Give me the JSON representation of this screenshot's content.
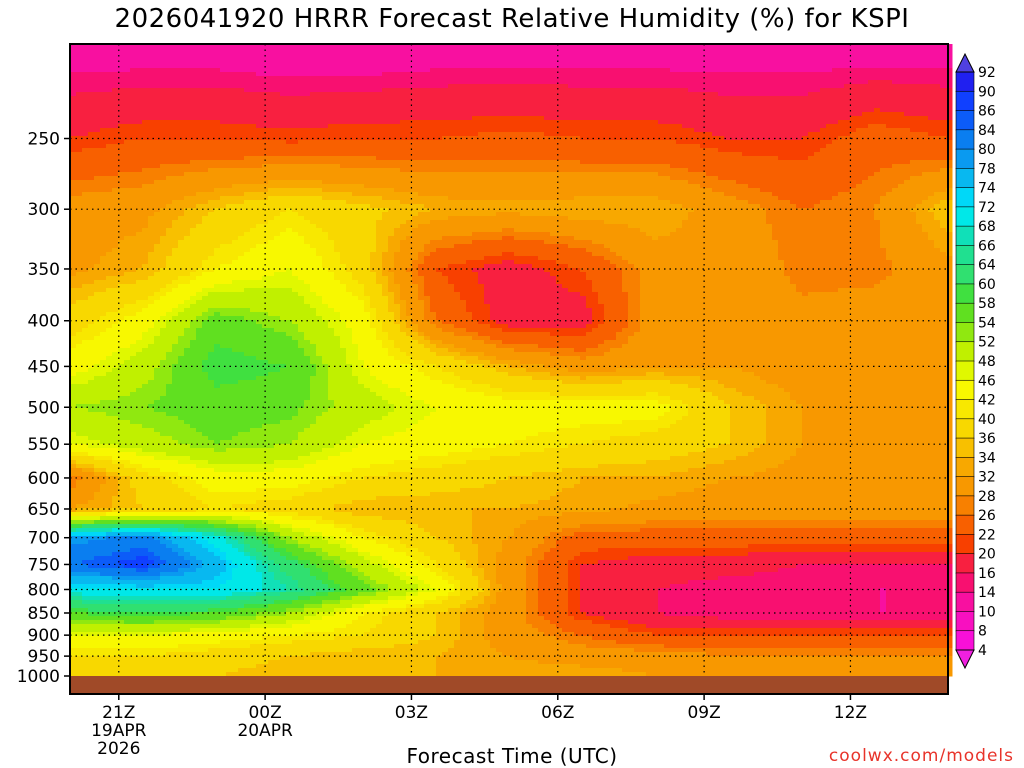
{
  "chart_data": {
    "type": "heatmap",
    "title": "2026041920 HRRR Forecast Relative Humidity (%) for KSPI",
    "xlabel": "Forecast Time (UTC)",
    "ylabel": "",
    "credit": "coolwx.com/models",
    "x_ticks": [
      {
        "hour": 1,
        "lines": [
          "21Z",
          "19APR",
          "2026"
        ]
      },
      {
        "hour": 4,
        "lines": [
          "00Z",
          "20APR"
        ]
      },
      {
        "hour": 7,
        "lines": [
          "03Z"
        ]
      },
      {
        "hour": 10,
        "lines": [
          "06Z"
        ]
      },
      {
        "hour": 13,
        "lines": [
          "09Z"
        ]
      },
      {
        "hour": 16,
        "lines": [
          "12Z"
        ]
      }
    ],
    "x_range_hours": [
      0,
      18
    ],
    "y_ticks": [
      250,
      300,
      350,
      400,
      450,
      500,
      550,
      600,
      650,
      700,
      750,
      800,
      850,
      900,
      950,
      1000
    ],
    "y_scale": "log",
    "y_range_hpa": [
      200,
      1000
    ],
    "grid": true,
    "colorbar": {
      "labels": [
        "92",
        "90",
        "86",
        "84",
        "80",
        "78",
        "74",
        "72",
        "68",
        "66",
        "64",
        "60",
        "58",
        "54",
        "52",
        "48",
        "46",
        "42",
        "40",
        "36",
        "34",
        "32",
        "28",
        "26",
        "22",
        "20",
        "16",
        "14",
        "10",
        "8",
        "4"
      ],
      "colors": [
        "#2020f0",
        "#1040ff",
        "#0c5cf8",
        "#0a7ef0",
        "#0a9af0",
        "#08b8f0",
        "#00d8f8",
        "#00e8e8",
        "#10e0b8",
        "#20e090",
        "#30e070",
        "#40e040",
        "#60e020",
        "#90e810",
        "#c0f000",
        "#e0f800",
        "#f8f800",
        "#f8e800",
        "#f8d800",
        "#f8c000",
        "#f8a800",
        "#f89800",
        "#f88000",
        "#f86000",
        "#f84000",
        "#f82040",
        "#f81070",
        "#f810a0",
        "#f810c0",
        "#f810d8"
      ]
    },
    "z_pressures": [
      200,
      250,
      300,
      350,
      400,
      450,
      500,
      550,
      600,
      650,
      700,
      750,
      800,
      850,
      900,
      950,
      1000
    ],
    "z_hours": [
      0,
      1.5,
      3,
      4.5,
      6,
      7.5,
      9,
      10.5,
      12,
      13.5,
      15,
      16.5,
      18
    ],
    "z_rh": [
      [
        12,
        12,
        12,
        11,
        11,
        12,
        12,
        12,
        12,
        12,
        12,
        12,
        12
      ],
      [
        20,
        22,
        22,
        21,
        22,
        22,
        23,
        22,
        22,
        20,
        20,
        24,
        22
      ],
      [
        30,
        31,
        36,
        40,
        37,
        34,
        33,
        34,
        34,
        30,
        26,
        28,
        36
      ],
      [
        31,
        34,
        42,
        46,
        38,
        22,
        18,
        22,
        30,
        31,
        27,
        27,
        31
      ],
      [
        38,
        44,
        56,
        52,
        44,
        26,
        18,
        18,
        30,
        32,
        29,
        30,
        30
      ],
      [
        44,
        50,
        60,
        58,
        46,
        40,
        34,
        30,
        32,
        32,
        30,
        30,
        30
      ],
      [
        52,
        54,
        56,
        55,
        50,
        46,
        44,
        44,
        44,
        36,
        32,
        30,
        30
      ],
      [
        46,
        50,
        54,
        52,
        46,
        44,
        42,
        40,
        38,
        36,
        32,
        30,
        30
      ],
      [
        26,
        38,
        44,
        44,
        40,
        38,
        36,
        34,
        34,
        32,
        31,
        30,
        30
      ],
      [
        32,
        36,
        40,
        38,
        34,
        34,
        34,
        33,
        31,
        30,
        30,
        30,
        30
      ],
      [
        78,
        82,
        70,
        52,
        42,
        36,
        32,
        24,
        24,
        24,
        24,
        24,
        24
      ],
      [
        84,
        88,
        76,
        62,
        50,
        40,
        30,
        20,
        18,
        18,
        16,
        16,
        16
      ],
      [
        70,
        72,
        72,
        66,
        56,
        46,
        30,
        20,
        16,
        14,
        14,
        14,
        14
      ],
      [
        58,
        60,
        58,
        52,
        42,
        36,
        30,
        20,
        16,
        14,
        14,
        14,
        14
      ],
      [
        46,
        46,
        44,
        42,
        40,
        36,
        30,
        26,
        22,
        22,
        22,
        22,
        22
      ],
      [
        40,
        40,
        38,
        36,
        34,
        34,
        32,
        30,
        30,
        28,
        28,
        28,
        28
      ],
      [
        36,
        36,
        36,
        34,
        34,
        34,
        34,
        34,
        32,
        32,
        32,
        32,
        32
      ]
    ]
  }
}
